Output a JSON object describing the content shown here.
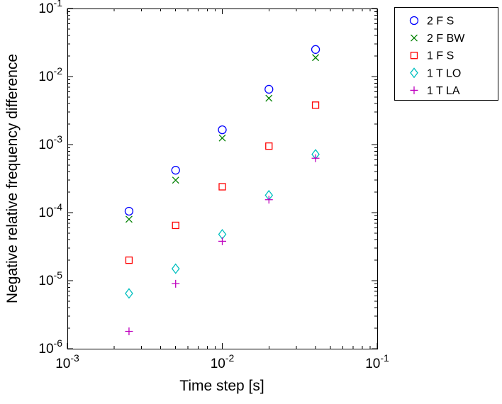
{
  "figure": {
    "background": "#ffffff",
    "axis_color": "#000000"
  },
  "chart_data": {
    "type": "scatter",
    "title": "",
    "xlabel": "Time step [s]",
    "ylabel": "Negative relative frequency difference",
    "x_scale": "log",
    "y_scale": "log",
    "xlim": [
      0.001,
      0.1
    ],
    "ylim": [
      1e-06,
      0.1
    ],
    "x_ticks": [
      0.001,
      0.01,
      0.1
    ],
    "y_ticks": [
      1e-06,
      1e-05,
      0.0001,
      0.001,
      0.01,
      0.1
    ],
    "grid": false,
    "legend_position": "top-right",
    "x": [
      0.0025,
      0.005,
      0.01,
      0.02,
      0.04
    ],
    "series": [
      {
        "name": "2 F S",
        "marker": "circle",
        "color": "#0000ff",
        "y": [
          0.000105,
          0.00042,
          0.00165,
          0.0065,
          0.025
        ]
      },
      {
        "name": "2 F BW",
        "marker": "x",
        "color": "#008000",
        "y": [
          8e-05,
          0.0003,
          0.00125,
          0.0048,
          0.019
        ]
      },
      {
        "name": "1 F S",
        "marker": "square",
        "color": "#ff0000",
        "y": [
          2e-05,
          6.5e-05,
          0.00024,
          0.00095,
          0.0038
        ]
      },
      {
        "name": "1 T LO",
        "marker": "diamond",
        "color": "#00bfbf",
        "y": [
          6.5e-06,
          1.5e-05,
          4.8e-05,
          0.00018,
          0.00072
        ]
      },
      {
        "name": "1 T LA",
        "marker": "plus",
        "color": "#bf00bf",
        "y": [
          1.8e-06,
          9e-06,
          3.8e-05,
          0.000155,
          0.00063
        ]
      }
    ]
  }
}
